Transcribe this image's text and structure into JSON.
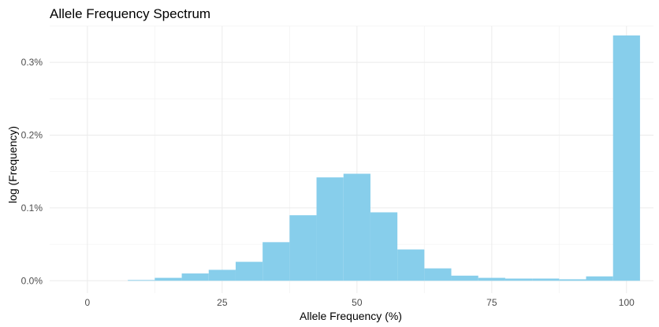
{
  "chart_data": {
    "type": "bar",
    "title": "Allele Frequency Spectrum",
    "xlabel": "Allele Frequency (%)",
    "ylabel": "log (Frequency)",
    "xlim": [
      -7,
      105
    ],
    "ylim": [
      -0.017,
      0.35
    ],
    "x_ticks": [
      {
        "value": 0,
        "label": "0"
      },
      {
        "value": 25,
        "label": "25"
      },
      {
        "value": 50,
        "label": "50"
      },
      {
        "value": 75,
        "label": "75"
      },
      {
        "value": 100,
        "label": "100"
      }
    ],
    "y_ticks": [
      {
        "value": 0,
        "label": "0.0%"
      },
      {
        "value": 0.1,
        "label": "0.1%"
      },
      {
        "value": 0.2,
        "label": "0.2%"
      },
      {
        "value": 0.3,
        "label": "0.3%"
      }
    ],
    "grid": true,
    "bar_color": "#87CEEB",
    "bin_width": 5,
    "bins": [
      {
        "x": 10,
        "value": 0.001
      },
      {
        "x": 15,
        "value": 0.004
      },
      {
        "x": 20,
        "value": 0.01
      },
      {
        "x": 25,
        "value": 0.015
      },
      {
        "x": 30,
        "value": 0.026
      },
      {
        "x": 35,
        "value": 0.053
      },
      {
        "x": 40,
        "value": 0.09
      },
      {
        "x": 45,
        "value": 0.142
      },
      {
        "x": 50,
        "value": 0.147
      },
      {
        "x": 55,
        "value": 0.094
      },
      {
        "x": 60,
        "value": 0.043
      },
      {
        "x": 65,
        "value": 0.017
      },
      {
        "x": 70,
        "value": 0.007
      },
      {
        "x": 75,
        "value": 0.004
      },
      {
        "x": 80,
        "value": 0.003
      },
      {
        "x": 85,
        "value": 0.003
      },
      {
        "x": 90,
        "value": 0.002
      },
      {
        "x": 95,
        "value": 0.006
      },
      {
        "x": 100,
        "value": 0.337
      }
    ]
  }
}
